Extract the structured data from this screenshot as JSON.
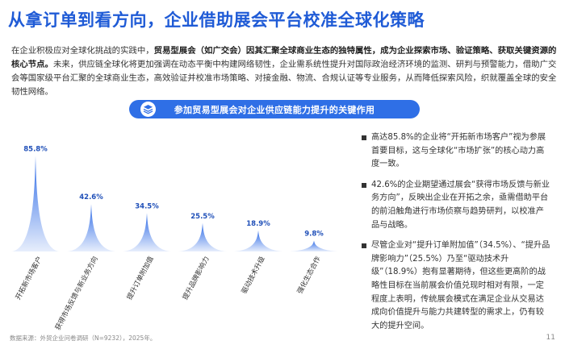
{
  "page": {
    "title": "从拿订单到看方向，企业借助展会平台校准全球化策略",
    "intro": {
      "p1": "在企业积极应对全球化挑战的实践中，",
      "b1": "贸易型展会（如广交会）因其汇聚全球商业生态的独特属性，成为企业探索市场、验证策略、获取关键资源的核心节点。",
      "p2": "未来，供应链全球化将更加强调在动态平衡中构建网络韧性，企业需系统性提升对国际政治经济环境的监测、研判与预警能力，借助广交会等国家级平台汇聚的全球商业生态，高效验证并校准市场策略、对接金融、物流、合规认证等专业服务，从而降低探索风险，织就覆盖全球的安全韧性网络。"
    },
    "banner": {
      "text": "参加贸易型展会对企业供应链能力提升的关键作用",
      "icon": "layers-icon"
    },
    "bullets": [
      "高达85.8%的企业将“开拓新市场客户”视为参展首要目标，这与全球化“市场扩张”的核心动力高度一致。",
      "42.6%的企业期望通过展会“获得市场反馈与新业务方向”，反映出企业在开拓之余，亟需借助平台的前沿触角进行市场侦察与趋势研判，以校准产品与战略。",
      "尽管企业对“提升订单附加值”（34.5%）、“提升品牌影响力”（25.5%）乃至“驱动技术升级”（18.9%）抱有显著期待，但这些更高阶的战略性目标在当前展会价值兑现时相对有限，一定程度上表明，传统展会模式在满足企业从交易达成向价值提升与能力共建转型的需求上，仍有较大的提升空间。"
    ],
    "footer": "数据来源：外贸企业问卷调研（N=9232），2025年。",
    "page_number": "11"
  },
  "colors": {
    "title": "#1f5bd6",
    "banner": "#2f6fe6",
    "peak_top": "#2d6ae6",
    "peak_bottom": "#e7eefc",
    "value_label": "#1f4fb8"
  },
  "chart_data": {
    "type": "bar",
    "style": "peak",
    "categories": [
      "开拓新市场客户",
      "获得市场反馈与新业务方向",
      "提升订单附加值",
      "提升品牌影响力",
      "驱动技术升级",
      "强化生态合作"
    ],
    "values": [
      85.8,
      42.6,
      34.5,
      25.5,
      18.9,
      9.8
    ],
    "value_labels": [
      "85.8%",
      "42.6%",
      "34.5%",
      "25.5%",
      "18.9%",
      "9.8%"
    ],
    "unit": "%",
    "ylim": [
      0,
      100
    ],
    "title": "",
    "xlabel": "",
    "ylabel": "",
    "grid": false,
    "legend": "none"
  }
}
